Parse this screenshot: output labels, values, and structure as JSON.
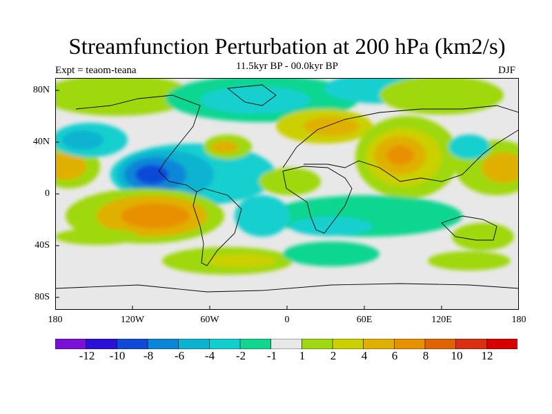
{
  "header": {
    "title": "Streamfunction Perturbation at 200 hPa (km2/s)",
    "subtitle": "11.5kyr BP - 00.0kyr BP",
    "experiment": "Expt = teaom-teana",
    "season": "DJF"
  },
  "map": {
    "lat_ticks": [
      "80N",
      "40N",
      "0",
      "40S",
      "80S"
    ],
    "lon_ticks": [
      "180",
      "120W",
      "60W",
      "0",
      "60E",
      "120E",
      "180"
    ]
  },
  "colorbar": {
    "colors": [
      "#7a10d8",
      "#2d10d8",
      "#1048d8",
      "#0a86d8",
      "#0ab3d0",
      "#12cfcf",
      "#10d690",
      "#e8e8e8",
      "#9fd810",
      "#cbd000",
      "#e0b000",
      "#e89000",
      "#e06200",
      "#d83010",
      "#d80000"
    ],
    "labels": [
      "-12",
      "-10",
      "-8",
      "-6",
      "-4",
      "-2",
      "-1",
      "1",
      "2",
      "4",
      "6",
      "8",
      "10",
      "12"
    ]
  }
}
